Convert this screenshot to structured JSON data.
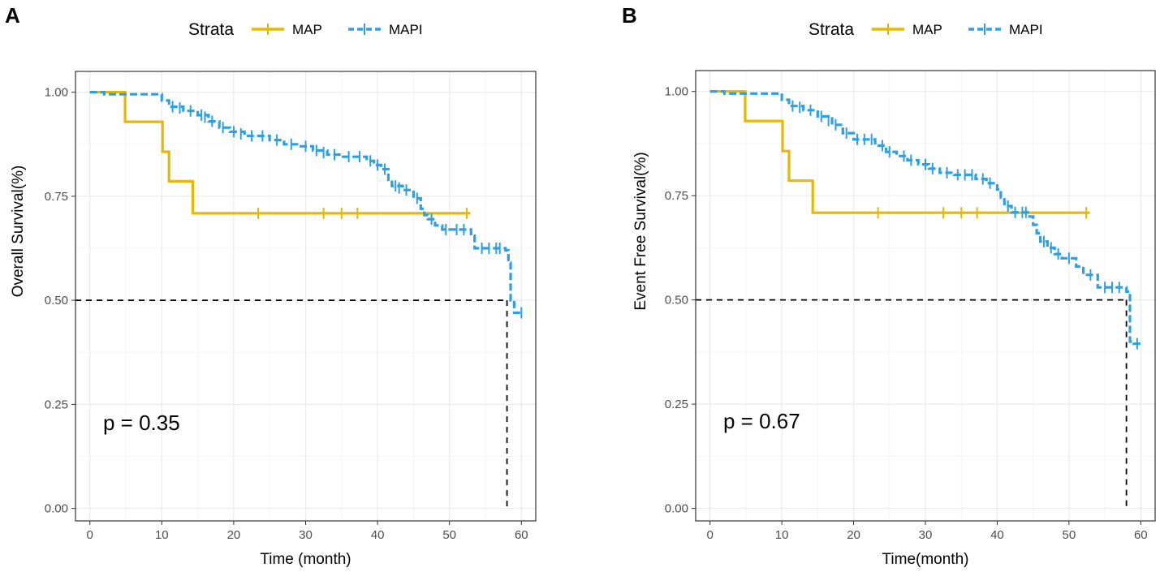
{
  "colors": {
    "MAP": "#E7B800",
    "MAPI": "#2E9FDF",
    "median": "#000000",
    "grid": "#ebebeb",
    "border": "#333333"
  },
  "chart_data": [
    {
      "type": "line",
      "subtype": "kaplan-meier",
      "panel_label": "A",
      "legend": {
        "title": "Strata",
        "entries": [
          "MAP",
          "MAPI"
        ],
        "position": "top"
      },
      "xlabel": "Time (month)",
      "ylabel": "Overall Survival(%)",
      "xlim": [
        -2,
        62
      ],
      "ylim": [
        -0.03,
        1.05
      ],
      "xticks": [
        0,
        10,
        20,
        30,
        40,
        50,
        60
      ],
      "xtick_labels": [
        "0",
        "10",
        "20",
        "30",
        "40",
        "50",
        "60"
      ],
      "yticks": [
        0,
        0.25,
        0.5,
        0.75,
        1.0
      ],
      "ytick_labels": [
        "0.00",
        "0.25",
        "0.50",
        "0.75",
        "1.00"
      ],
      "pvalue": "p = 0.35",
      "median_survival": {
        "x": 58.0,
        "y": 0.5
      },
      "series": [
        {
          "name": "MAP",
          "steps": [
            [
              0,
              1.0
            ],
            [
              4.9,
              0.929
            ],
            [
              10.1,
              0.857
            ],
            [
              11.0,
              0.786
            ],
            [
              14.3,
              0.709
            ],
            [
              52.9,
              0.709
            ]
          ],
          "censors": [
            [
              23.4,
              0.709
            ],
            [
              32.5,
              0.709
            ],
            [
              35.0,
              0.709
            ],
            [
              37.2,
              0.709
            ],
            [
              52.4,
              0.709
            ]
          ]
        },
        {
          "name": "MAPI",
          "steps": [
            [
              0,
              1.0
            ],
            [
              2.0,
              0.995
            ],
            [
              10.0,
              0.98
            ],
            [
              11.0,
              0.965
            ],
            [
              13.0,
              0.955
            ],
            [
              15.0,
              0.945
            ],
            [
              16.5,
              0.93
            ],
            [
              18.0,
              0.915
            ],
            [
              19.5,
              0.905
            ],
            [
              21.5,
              0.895
            ],
            [
              25.0,
              0.885
            ],
            [
              27.0,
              0.875
            ],
            [
              29.0,
              0.87
            ],
            [
              31.0,
              0.86
            ],
            [
              33.0,
              0.85
            ],
            [
              35.0,
              0.845
            ],
            [
              37.0,
              0.845
            ],
            [
              38.5,
              0.835
            ],
            [
              39.5,
              0.825
            ],
            [
              40.5,
              0.815
            ],
            [
              41.5,
              0.79
            ],
            [
              42.0,
              0.775
            ],
            [
              43.5,
              0.765
            ],
            [
              45.0,
              0.745
            ],
            [
              46.0,
              0.72
            ],
            [
              46.5,
              0.705
            ],
            [
              47.0,
              0.695
            ],
            [
              48.0,
              0.68
            ],
            [
              49.0,
              0.67
            ],
            [
              53.0,
              0.655
            ],
            [
              53.5,
              0.625
            ],
            [
              57.8,
              0.62
            ],
            [
              58.2,
              0.59
            ],
            [
              58.5,
              0.5
            ],
            [
              59.0,
              0.47
            ],
            [
              60.0,
              0.47
            ]
          ],
          "censors": [
            [
              11.5,
              0.965
            ],
            [
              12.5,
              0.962
            ],
            [
              14.0,
              0.955
            ],
            [
              15.5,
              0.945
            ],
            [
              16.0,
              0.94
            ],
            [
              17.0,
              0.93
            ],
            [
              18.5,
              0.915
            ],
            [
              20.0,
              0.905
            ],
            [
              21.0,
              0.9
            ],
            [
              22.5,
              0.895
            ],
            [
              24.0,
              0.895
            ],
            [
              26.0,
              0.885
            ],
            [
              28.0,
              0.875
            ],
            [
              30.0,
              0.87
            ],
            [
              31.5,
              0.86
            ],
            [
              32.5,
              0.855
            ],
            [
              34.0,
              0.85
            ],
            [
              36.0,
              0.845
            ],
            [
              37.5,
              0.845
            ],
            [
              39.0,
              0.835
            ],
            [
              40.0,
              0.825
            ],
            [
              41.0,
              0.815
            ],
            [
              42.5,
              0.775
            ],
            [
              43.0,
              0.77
            ],
            [
              44.0,
              0.765
            ],
            [
              45.5,
              0.745
            ],
            [
              47.5,
              0.695
            ],
            [
              49.5,
              0.67
            ],
            [
              51.0,
              0.67
            ],
            [
              52.0,
              0.67
            ],
            [
              54.5,
              0.625
            ],
            [
              55.5,
              0.625
            ],
            [
              56.5,
              0.625
            ],
            [
              57.0,
              0.625
            ],
            [
              60.0,
              0.47
            ]
          ]
        }
      ]
    },
    {
      "type": "line",
      "subtype": "kaplan-meier",
      "panel_label": "B",
      "legend": {
        "title": "Strata",
        "entries": [
          "MAP",
          "MAPI"
        ],
        "position": "top"
      },
      "xlabel": "Time(month)",
      "ylabel": "Event Free Survival(%)",
      "xlim": [
        -2,
        62
      ],
      "ylim": [
        -0.03,
        1.05
      ],
      "xticks": [
        0,
        10,
        20,
        30,
        40,
        50,
        60
      ],
      "xtick_labels": [
        "0",
        "10",
        "20",
        "30",
        "40",
        "50",
        "60"
      ],
      "yticks": [
        0,
        0.25,
        0.5,
        0.75,
        1.0
      ],
      "ytick_labels": [
        "0.00",
        "0.25",
        "0.50",
        "0.75",
        "1.00"
      ],
      "pvalue": "p = 0.67",
      "median_survival": {
        "x": 58.0,
        "y": 0.5
      },
      "series": [
        {
          "name": "MAP",
          "steps": [
            [
              0,
              1.0
            ],
            [
              4.9,
              0.929
            ],
            [
              10.1,
              0.857
            ],
            [
              11.0,
              0.786
            ],
            [
              14.3,
              0.709
            ],
            [
              52.9,
              0.709
            ]
          ],
          "censors": [
            [
              23.4,
              0.709
            ],
            [
              32.5,
              0.709
            ],
            [
              35.0,
              0.709
            ],
            [
              37.2,
              0.709
            ],
            [
              52.4,
              0.709
            ]
          ]
        },
        {
          "name": "MAPI",
          "steps": [
            [
              0,
              1.0
            ],
            [
              2.0,
              0.995
            ],
            [
              10.0,
              0.98
            ],
            [
              11.0,
              0.965
            ],
            [
              13.0,
              0.955
            ],
            [
              15.0,
              0.94
            ],
            [
              17.0,
              0.92
            ],
            [
              18.5,
              0.9
            ],
            [
              20.0,
              0.885
            ],
            [
              23.0,
              0.87
            ],
            [
              24.5,
              0.855
            ],
            [
              26.0,
              0.845
            ],
            [
              27.5,
              0.835
            ],
            [
              29.0,
              0.825
            ],
            [
              30.5,
              0.815
            ],
            [
              32.0,
              0.805
            ],
            [
              34.0,
              0.8
            ],
            [
              37.0,
              0.79
            ],
            [
              38.5,
              0.78
            ],
            [
              40.0,
              0.765
            ],
            [
              40.5,
              0.745
            ],
            [
              41.0,
              0.725
            ],
            [
              42.0,
              0.71
            ],
            [
              44.5,
              0.7
            ],
            [
              45.0,
              0.68
            ],
            [
              45.5,
              0.66
            ],
            [
              46.0,
              0.64
            ],
            [
              47.0,
              0.625
            ],
            [
              48.0,
              0.61
            ],
            [
              49.0,
              0.6
            ],
            [
              51.0,
              0.58
            ],
            [
              52.0,
              0.56
            ],
            [
              54.0,
              0.53
            ],
            [
              58.0,
              0.52
            ],
            [
              58.5,
              0.4
            ],
            [
              59.0,
              0.395
            ],
            [
              60.0,
              0.395
            ]
          ],
          "censors": [
            [
              11.5,
              0.965
            ],
            [
              12.5,
              0.962
            ],
            [
              14.0,
              0.955
            ],
            [
              15.5,
              0.94
            ],
            [
              16.5,
              0.93
            ],
            [
              17.5,
              0.92
            ],
            [
              19.0,
              0.9
            ],
            [
              20.5,
              0.885
            ],
            [
              21.5,
              0.885
            ],
            [
              22.5,
              0.885
            ],
            [
              24.0,
              0.87
            ],
            [
              25.0,
              0.855
            ],
            [
              27.0,
              0.845
            ],
            [
              28.0,
              0.835
            ],
            [
              30.0,
              0.825
            ],
            [
              31.0,
              0.815
            ],
            [
              33.0,
              0.805
            ],
            [
              34.5,
              0.8
            ],
            [
              35.5,
              0.8
            ],
            [
              36.5,
              0.8
            ],
            [
              38.0,
              0.79
            ],
            [
              39.0,
              0.78
            ],
            [
              41.5,
              0.725
            ],
            [
              42.5,
              0.71
            ],
            [
              43.5,
              0.71
            ],
            [
              44.0,
              0.71
            ],
            [
              46.5,
              0.64
            ],
            [
              47.5,
              0.625
            ],
            [
              48.5,
              0.61
            ],
            [
              50.0,
              0.6
            ],
            [
              53.0,
              0.56
            ],
            [
              55.0,
              0.53
            ],
            [
              56.0,
              0.53
            ],
            [
              57.0,
              0.53
            ],
            [
              59.5,
              0.395
            ]
          ]
        }
      ]
    }
  ]
}
